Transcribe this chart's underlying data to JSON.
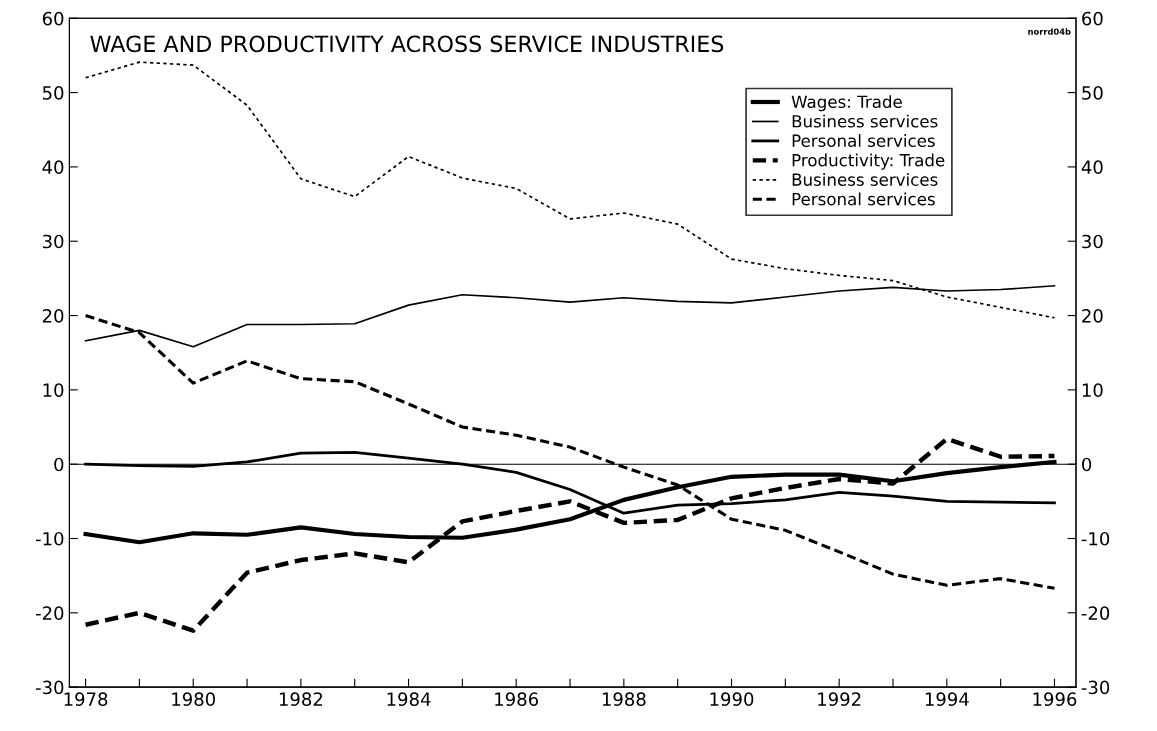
{
  "chart_data": {
    "type": "line",
    "title": "WAGE AND PRODUCTIVITY ACROSS SERVICE INDUSTRIES",
    "x": [
      1978,
      1979,
      1980,
      1981,
      1982,
      1983,
      1984,
      1985,
      1986,
      1987,
      1988,
      1989,
      1990,
      1991,
      1992,
      1993,
      1994,
      1995,
      1996
    ],
    "series": [
      {
        "name": "Wages: Trade",
        "color": "#000000",
        "line_style": "solid",
        "values": [
          -9.4,
          -10.5,
          -9.3,
          -9.5,
          -8.5,
          -9.4,
          -9.8,
          -9.9,
          -8.8,
          -7.4,
          -4.8,
          -3.1,
          -1.7,
          -1.4,
          -1.4,
          -2.3,
          -1.2,
          -0.4,
          0.3
        ]
      },
      {
        "name": "Business services",
        "color": "#000000",
        "line_style": "solid",
        "values": [
          16.6,
          18,
          15.8,
          18.8,
          18.8,
          18.9,
          21.4,
          22.8,
          22.4,
          21.8,
          22.4,
          21.9,
          21.7,
          22.5,
          23.3,
          23.8,
          23.3,
          23.5,
          24
        ]
      },
      {
        "name": "Personal services",
        "color": "#000000",
        "line_style": "solid",
        "values": [
          0,
          -0.2,
          -0.3,
          0.3,
          1.5,
          1.6,
          0.8,
          0,
          -1.1,
          -3.4,
          -6.6,
          -5.5,
          -5.3,
          -4.8,
          -3.8,
          -4.3,
          -5,
          -5.1,
          -5.2
        ]
      },
      {
        "name": "Productivity: Trade",
        "color": "#000000",
        "line_style": "dashed",
        "values": [
          -21.6,
          -20,
          -22.4,
          -14.6,
          -12.9,
          -12,
          -13.2,
          -7.7,
          -6.3,
          -5,
          -7.9,
          -7.5,
          -4.6,
          -3.2,
          -2,
          -2.6,
          3.4,
          1,
          1.1
        ]
      },
      {
        "name": "Business services",
        "color": "#000000",
        "line_style": "dotted",
        "values": [
          52,
          54.1,
          53.7,
          48.3,
          38.4,
          36,
          41.4,
          38.5,
          37.1,
          33,
          33.8,
          32.3,
          27.6,
          26.3,
          25.4,
          24.7,
          22.5,
          21.1,
          19.7
        ]
      },
      {
        "name": "Personal services",
        "color": "#000000",
        "line_style": "dashed",
        "values": [
          20,
          17.7,
          10.9,
          13.9,
          11.5,
          11.1,
          8.1,
          5,
          3.9,
          2.3,
          -0.4,
          -2.8,
          -7.4,
          -8.9,
          -11.8,
          -14.8,
          -16.3,
          -15.4,
          -16.7
        ]
      }
    ],
    "xlim": [
      1977.7,
      1996.4
    ],
    "xticks": [
      1978,
      {
        "value": 1979,
        "label": null
      },
      1980,
      {
        "value": 1981,
        "label": null
      },
      1982,
      {
        "value": 1983,
        "label": null
      },
      1984,
      {
        "value": 1985,
        "label": null
      },
      1986,
      {
        "value": 1987,
        "label": null
      },
      1988,
      {
        "value": 1989,
        "label": null
      },
      1990,
      {
        "value": 1991,
        "label": null
      },
      1992,
      {
        "value": 1993,
        "label": null
      },
      1994,
      {
        "value": 1995,
        "label": null
      },
      1996
    ],
    "ylim": [
      -30,
      60
    ],
    "yticks": [
      -30,
      -20,
      -10,
      0,
      10,
      20,
      30,
      40,
      50,
      60
    ],
    "y2lim": [
      -30,
      60
    ],
    "y2ticks": [
      -30,
      -20,
      -10,
      0,
      10,
      20,
      30,
      40,
      50,
      60
    ],
    "ref_lines": [
      {
        "axis": "y",
        "value": 0,
        "color": "#000000"
      }
    ],
    "annotations": [
      "norrd04b"
    ],
    "legend": "top right",
    "grid": false,
    "marker": "none"
  }
}
